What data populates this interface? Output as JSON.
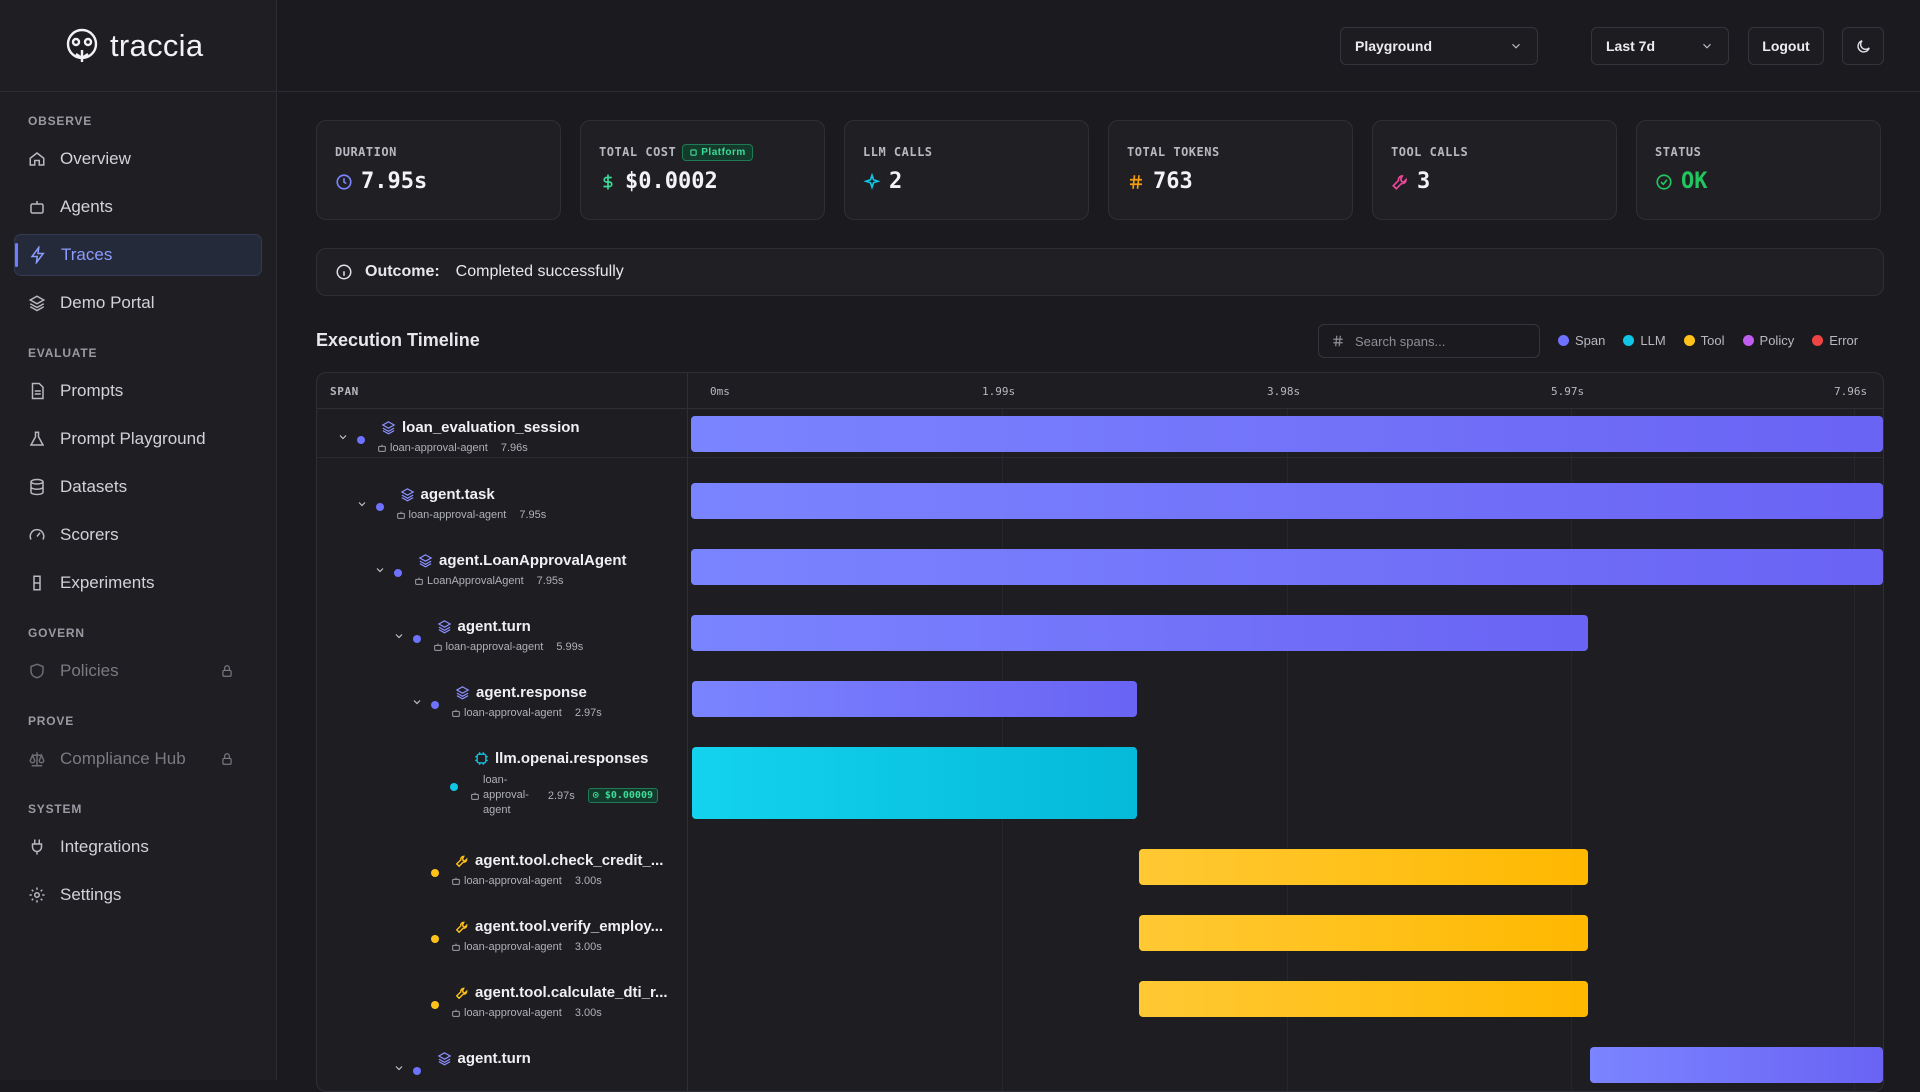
{
  "app": {
    "name": "traccia"
  },
  "sidebar": {
    "sections": {
      "observe": "OBSERVE",
      "evaluate": "EVALUATE",
      "govern": "GOVERN",
      "prove": "PROVE",
      "system": "SYSTEM"
    },
    "items": {
      "overview": "Overview",
      "agents": "Agents",
      "traces": "Traces",
      "demo_portal": "Demo Portal",
      "prompts": "Prompts",
      "prompt_playground": "Prompt Playground",
      "datasets": "Datasets",
      "scorers": "Scorers",
      "experiments": "Experiments",
      "policies": "Policies",
      "compliance_hub": "Compliance Hub",
      "integrations": "Integrations",
      "settings": "Settings"
    },
    "active": "traces"
  },
  "topbar": {
    "project": "Playground",
    "range": "Last 7d",
    "logout": "Logout"
  },
  "stats": {
    "duration": {
      "label": "DURATION",
      "value": "7.95s"
    },
    "total_cost": {
      "label": "TOTAL COST",
      "badge": "Platform",
      "value": "$0.0002"
    },
    "llm_calls": {
      "label": "LLM CALLS",
      "value": "2"
    },
    "total_tokens": {
      "label": "TOTAL TOKENS",
      "value": "763"
    },
    "tool_calls": {
      "label": "TOOL CALLS",
      "value": "3"
    },
    "status": {
      "label": "STATUS",
      "value": "OK"
    }
  },
  "outcome": {
    "label": "Outcome:",
    "text": "Completed successfully"
  },
  "timeline": {
    "title": "Execution Timeline",
    "search_placeholder": "Search spans...",
    "legend": [
      "Span",
      "LLM",
      "Tool",
      "Policy",
      "Error"
    ],
    "legend_colors": [
      "#6f72ff",
      "#0fc6e6",
      "#ffc21a",
      "#c15cf0",
      "#ef4444"
    ],
    "span_header": "SPAN",
    "ticks": [
      "0ms",
      "1.99s",
      "3.98s",
      "5.97s",
      "7.96s"
    ],
    "total_s": 7.96,
    "spans": [
      {
        "name": "loan_evaluation_session",
        "agent": "loan-approval-agent",
        "duration": "7.96s",
        "kind": "span",
        "depth": 0,
        "start_s": 0.0,
        "end_s": 7.96
      },
      {
        "name": "agent.task",
        "agent": "loan-approval-agent",
        "duration": "7.95s",
        "kind": "span",
        "depth": 1,
        "start_s": 0.0,
        "end_s": 7.96
      },
      {
        "name": "agent.LoanApprovalAgent",
        "agent": "LoanApprovalAgent",
        "duration": "7.95s",
        "kind": "span",
        "depth": 2,
        "start_s": 0.0,
        "end_s": 7.96
      },
      {
        "name": "agent.turn",
        "agent": "loan-approval-agent",
        "duration": "5.99s",
        "kind": "span",
        "depth": 3,
        "start_s": 0.0,
        "end_s": 5.99
      },
      {
        "name": "agent.response",
        "agent": "loan-approval-agent",
        "duration": "2.97s",
        "kind": "span",
        "depth": 4,
        "start_s": 0.01,
        "end_s": 2.98
      },
      {
        "name": "llm.openai.responses",
        "agent_lines": [
          "loan-",
          "approval-",
          "agent"
        ],
        "duration": "2.97s",
        "cost": "$0.00009",
        "kind": "llm",
        "depth": 5,
        "start_s": 0.01,
        "end_s": 2.98
      },
      {
        "name": "agent.tool.check_credit_...",
        "agent": "loan-approval-agent",
        "duration": "3.00s",
        "kind": "tool",
        "depth": 4,
        "start_s": 2.99,
        "end_s": 5.99
      },
      {
        "name": "agent.tool.verify_employ...",
        "agent": "loan-approval-agent",
        "duration": "3.00s",
        "kind": "tool",
        "depth": 4,
        "start_s": 2.99,
        "end_s": 5.99
      },
      {
        "name": "agent.tool.calculate_dti_r...",
        "agent": "loan-approval-agent",
        "duration": "3.00s",
        "kind": "tool",
        "depth": 4,
        "start_s": 2.99,
        "end_s": 5.99
      },
      {
        "name": "agent.turn",
        "agent": "",
        "duration": "",
        "kind": "span",
        "depth": 3,
        "start_s": 6.0,
        "end_s": 7.96
      }
    ]
  }
}
